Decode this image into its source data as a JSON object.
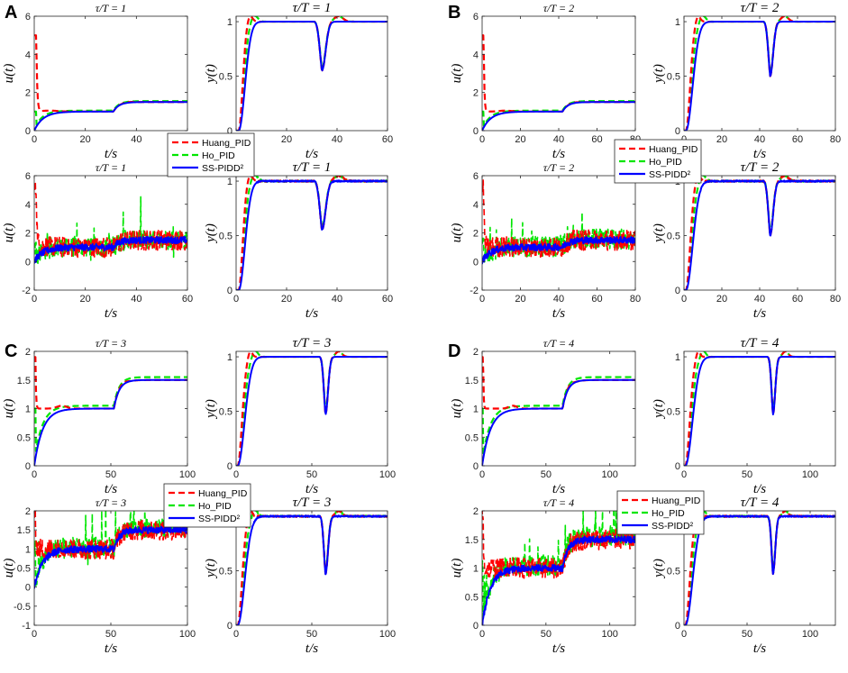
{
  "panels": [
    {
      "letter": "A",
      "legend": [
        "Huang_PID",
        "Ho_PID",
        "SS-PIDD²"
      ],
      "chart_data": [
        {
          "type": "line",
          "title": "τ/T = 1",
          "xlabel": "t/s",
          "ylabel": "u(t)",
          "xlim": [
            0,
            60
          ],
          "ylim": [
            0,
            6
          ],
          "xticks": [
            0,
            20,
            40,
            60
          ],
          "yticks": [
            0,
            2,
            4,
            6
          ],
          "kind": "u",
          "noisy": false,
          "tau": 1,
          "dist": 31,
          "final": 1.5,
          "series": [
            {
              "name": "Huang_PID",
              "values": [
                5.0,
                0.9,
                1.0,
                1.5
              ]
            },
            {
              "name": "Ho_PID",
              "values": [
                1.0,
                0.9,
                1.0,
                1.5
              ]
            },
            {
              "name": "SS-PIDD²",
              "values": [
                0,
                0.9,
                1.0,
                1.5
              ]
            }
          ]
        },
        {
          "type": "line",
          "title": "τ/T = 1",
          "xlabel": "t/s",
          "ylabel": "y(t)",
          "xlim": [
            0,
            60
          ],
          "ylim": [
            0,
            1.05
          ],
          "xticks": [
            0,
            20,
            40,
            60
          ],
          "yticks": [
            0,
            0.5,
            1
          ],
          "kind": "y",
          "noisy": false,
          "tau": 1,
          "dist": 31,
          "series": [
            {
              "name": "Huang_PID",
              "values": [
                0,
                1.1,
                1.0,
                0.6,
                1.0
              ]
            },
            {
              "name": "Ho_PID",
              "values": [
                0,
                1.1,
                1.0,
                0.6,
                1.0
              ]
            },
            {
              "name": "SS-PIDD²",
              "values": [
                0,
                1.0,
                1.0,
                0.55,
                1.0
              ]
            }
          ]
        },
        {
          "type": "line",
          "title": "τ/T = 1",
          "xlabel": "t/s",
          "ylabel": "u(t)",
          "xlim": [
            0,
            60
          ],
          "ylim": [
            -2,
            6
          ],
          "xticks": [
            0,
            20,
            40,
            60
          ],
          "yticks": [
            -2,
            0,
            2,
            4,
            6
          ],
          "kind": "u",
          "noisy": true,
          "tau": 1,
          "dist": 31,
          "final": 1.5,
          "series": [
            {
              "name": "Huang_PID",
              "values": [
                5.0,
                1.0,
                1.5
              ]
            },
            {
              "name": "Ho_PID",
              "values": [
                1.0,
                1.0,
                1.5
              ]
            },
            {
              "name": "SS-PIDD²",
              "values": [
                0,
                1.0,
                1.5
              ]
            }
          ]
        },
        {
          "type": "line",
          "title": "τ/T = 1",
          "xlabel": "t/s",
          "ylabel": "y(t)",
          "xlim": [
            0,
            60
          ],
          "ylim": [
            0,
            1.05
          ],
          "xticks": [
            0,
            20,
            40,
            60
          ],
          "yticks": [
            0,
            0.5,
            1
          ],
          "kind": "y",
          "noisy": true,
          "tau": 1,
          "dist": 31,
          "series": [
            {
              "name": "Huang_PID",
              "values": [
                0,
                1.1,
                1.0,
                0.6,
                1.0
              ]
            },
            {
              "name": "Ho_PID",
              "values": [
                0,
                1.1,
                1.0,
                0.6,
                1.0
              ]
            },
            {
              "name": "SS-PIDD²",
              "values": [
                0,
                1.0,
                1.0,
                0.55,
                1.0
              ]
            }
          ]
        }
      ]
    },
    {
      "letter": "B",
      "legend": [
        "Huang_PID",
        "Ho_PID",
        "SS-PIDD²"
      ],
      "chart_data": [
        {
          "type": "line",
          "title": "τ/T = 2",
          "xlabel": "t/s",
          "ylabel": "u(t)",
          "xlim": [
            0,
            80
          ],
          "ylim": [
            0,
            6
          ],
          "xticks": [
            0,
            20,
            40,
            60,
            80
          ],
          "yticks": [
            0,
            2,
            4,
            6
          ],
          "kind": "u",
          "noisy": false,
          "tau": 2,
          "dist": 42,
          "final": 1.5,
          "series": [
            {
              "name": "Huang_PID",
              "values": [
                5.0,
                1.0,
                1.0,
                1.5
              ]
            },
            {
              "name": "Ho_PID",
              "values": [
                1.0,
                1.0,
                1.0,
                1.5
              ]
            },
            {
              "name": "SS-PIDD²",
              "values": [
                0,
                1.0,
                1.0,
                1.5
              ]
            }
          ]
        },
        {
          "type": "line",
          "title": "τ/T = 2",
          "xlabel": "t/s",
          "ylabel": "y(t)",
          "xlim": [
            0,
            80
          ],
          "ylim": [
            0,
            1.05
          ],
          "xticks": [
            0,
            20,
            40,
            60,
            80
          ],
          "yticks": [
            0,
            0.5,
            1
          ],
          "kind": "y",
          "noisy": false,
          "tau": 2,
          "dist": 42,
          "series": [
            {
              "name": "Huang_PID",
              "values": [
                0,
                1.05,
                1.0,
                0.5,
                1.0
              ]
            },
            {
              "name": "Ho_PID",
              "values": [
                0,
                1.0,
                1.0,
                0.5,
                1.0
              ]
            },
            {
              "name": "SS-PIDD²",
              "values": [
                0,
                1.0,
                1.0,
                0.5,
                1.0
              ]
            }
          ]
        },
        {
          "type": "line",
          "title": "τ/T = 2",
          "xlabel": "t/s",
          "ylabel": "u(t)",
          "xlim": [
            0,
            80
          ],
          "ylim": [
            -2,
            6
          ],
          "xticks": [
            0,
            20,
            40,
            60,
            80
          ],
          "yticks": [
            -2,
            0,
            2,
            4,
            6
          ],
          "kind": "u",
          "noisy": true,
          "tau": 2,
          "dist": 42,
          "final": 1.5,
          "series": [
            {
              "name": "Huang_PID",
              "values": [
                5.0,
                1.0,
                1.5
              ]
            },
            {
              "name": "Ho_PID",
              "values": [
                1.0,
                1.0,
                1.5
              ]
            },
            {
              "name": "SS-PIDD²",
              "values": [
                0,
                1.0,
                1.5
              ]
            }
          ]
        },
        {
          "type": "line",
          "title": "τ/T = 2",
          "xlabel": "t/s",
          "ylabel": "y(t)",
          "xlim": [
            0,
            80
          ],
          "ylim": [
            0,
            1.05
          ],
          "xticks": [
            0,
            20,
            40,
            60,
            80
          ],
          "yticks": [
            0,
            0.5,
            1
          ],
          "kind": "y",
          "noisy": true,
          "tau": 2,
          "dist": 42,
          "series": [
            {
              "name": "Huang_PID",
              "values": [
                0,
                1.05,
                1.0,
                0.5,
                1.0
              ]
            },
            {
              "name": "Ho_PID",
              "values": [
                0,
                1.0,
                1.0,
                0.5,
                1.0
              ]
            },
            {
              "name": "SS-PIDD²",
              "values": [
                0,
                1.0,
                1.0,
                0.5,
                1.0
              ]
            }
          ]
        }
      ]
    },
    {
      "letter": "C",
      "legend": [
        "Huang_PID",
        "Ho_PID",
        "SS-PIDD²"
      ],
      "chart_data": [
        {
          "type": "line",
          "title": "τ/T = 3",
          "xlabel": "t/s",
          "ylabel": "u(t)",
          "xlim": [
            0,
            100
          ],
          "ylim": [
            0,
            2
          ],
          "xticks": [
            0,
            50,
            100
          ],
          "yticks": [
            0,
            0.5,
            1,
            1.5,
            2
          ],
          "kind": "u",
          "noisy": false,
          "tau": 3,
          "dist": 52,
          "final": 1.5,
          "series": [
            {
              "name": "Huang_PID",
              "values": [
                1.9,
                1.0,
                1.0,
                1.5
              ]
            },
            {
              "name": "Ho_PID",
              "values": [
                1.0,
                1.0,
                1.0,
                1.5
              ]
            },
            {
              "name": "SS-PIDD²",
              "values": [
                0,
                1.0,
                1.0,
                1.5
              ]
            }
          ]
        },
        {
          "type": "line",
          "title": "τ/T = 3",
          "xlabel": "t/s",
          "ylabel": "y(t)",
          "xlim": [
            0,
            100
          ],
          "ylim": [
            0,
            1.05
          ],
          "xticks": [
            0,
            50,
            100
          ],
          "yticks": [
            0,
            0.5,
            1
          ],
          "kind": "y",
          "noisy": false,
          "tau": 3,
          "dist": 55,
          "series": [
            {
              "name": "Huang_PID",
              "values": [
                0,
                1.05,
                1.0,
                0.47,
                1.0
              ]
            },
            {
              "name": "Ho_PID",
              "values": [
                0,
                1.0,
                1.0,
                0.47,
                1.0
              ]
            },
            {
              "name": "SS-PIDD²",
              "values": [
                0,
                1.0,
                1.0,
                0.47,
                1.0
              ]
            }
          ]
        },
        {
          "type": "line",
          "title": "τ/T = 3",
          "xlabel": "t/s",
          "ylabel": "u(t)",
          "xlim": [
            0,
            100
          ],
          "ylim": [
            -1,
            2
          ],
          "xticks": [
            0,
            50,
            100
          ],
          "yticks": [
            -1,
            -0.5,
            0,
            0.5,
            1,
            1.5,
            2
          ],
          "kind": "u",
          "noisy": true,
          "tau": 3,
          "dist": 52,
          "final": 1.5,
          "series": [
            {
              "name": "Huang_PID",
              "values": [
                1.9,
                1.0,
                1.5
              ]
            },
            {
              "name": "Ho_PID",
              "values": [
                1.0,
                1.0,
                1.5
              ]
            },
            {
              "name": "SS-PIDD²",
              "values": [
                0,
                1.0,
                1.5
              ]
            }
          ]
        },
        {
          "type": "line",
          "title": "τ/T = 3",
          "xlabel": "t/s",
          "ylabel": "y(t)",
          "xlim": [
            0,
            100
          ],
          "ylim": [
            0,
            1.05
          ],
          "xticks": [
            0,
            50,
            100
          ],
          "yticks": [
            0,
            0.5,
            1
          ],
          "kind": "y",
          "noisy": true,
          "tau": 3,
          "dist": 55,
          "series": [
            {
              "name": "Huang_PID",
              "values": [
                0,
                1.05,
                1.0,
                0.47,
                1.0
              ]
            },
            {
              "name": "Ho_PID",
              "values": [
                0,
                1.0,
                1.0,
                0.47,
                1.0
              ]
            },
            {
              "name": "SS-PIDD²",
              "values": [
                0,
                1.0,
                1.0,
                0.47,
                1.0
              ]
            }
          ]
        }
      ]
    },
    {
      "letter": "D",
      "legend": [
        "Huang_PID",
        "Ho_PID",
        "SS-PIDD²"
      ],
      "chart_data": [
        {
          "type": "line",
          "title": "τ/T = 4",
          "xlabel": "t/s",
          "ylabel": "u(t)",
          "xlim": [
            0,
            120
          ],
          "ylim": [
            0,
            2
          ],
          "xticks": [
            0,
            50,
            100
          ],
          "yticks": [
            0,
            0.5,
            1,
            1.5,
            2
          ],
          "kind": "u",
          "noisy": false,
          "tau": 4,
          "dist": 63,
          "final": 1.5,
          "series": [
            {
              "name": "Huang_PID",
              "values": [
                1.9,
                1.0,
                1.0,
                1.5
              ]
            },
            {
              "name": "Ho_PID",
              "values": [
                1.0,
                1.0,
                1.0,
                1.5
              ]
            },
            {
              "name": "SS-PIDD²",
              "values": [
                0,
                1.0,
                1.0,
                1.5
              ]
            }
          ]
        },
        {
          "type": "line",
          "title": "τ/T = 4",
          "xlabel": "t/s",
          "ylabel": "y(t)",
          "xlim": [
            0,
            120
          ],
          "ylim": [
            0,
            1.05
          ],
          "xticks": [
            0,
            50,
            100
          ],
          "yticks": [
            0,
            0.5,
            1
          ],
          "kind": "y",
          "noisy": false,
          "tau": 4,
          "dist": 66,
          "series": [
            {
              "name": "Huang_PID",
              "values": [
                0,
                1.05,
                1.0,
                0.47,
                1.0
              ]
            },
            {
              "name": "Ho_PID",
              "values": [
                0,
                1.0,
                1.0,
                0.47,
                1.0
              ]
            },
            {
              "name": "SS-PIDD²",
              "values": [
                0,
                1.0,
                1.0,
                0.47,
                1.0
              ]
            }
          ]
        },
        {
          "type": "line",
          "title": "τ/T = 4",
          "xlabel": "t/s",
          "ylabel": "u(t)",
          "xlim": [
            0,
            120
          ],
          "ylim": [
            0,
            2
          ],
          "xticks": [
            0,
            50,
            100
          ],
          "yticks": [
            0,
            0.5,
            1,
            1.5,
            2
          ],
          "kind": "u",
          "noisy": true,
          "tau": 4,
          "dist": 63,
          "final": 1.5,
          "series": [
            {
              "name": "Huang_PID",
              "values": [
                1.9,
                1.0,
                1.5
              ]
            },
            {
              "name": "Ho_PID",
              "values": [
                1.0,
                1.0,
                1.5
              ]
            },
            {
              "name": "SS-PIDD²",
              "values": [
                0,
                1.0,
                1.5
              ]
            }
          ]
        },
        {
          "type": "line",
          "title": "τ/T = 4",
          "xlabel": "t/s",
          "ylabel": "y(t)",
          "xlim": [
            0,
            120
          ],
          "ylim": [
            0,
            1.05
          ],
          "xticks": [
            0,
            50,
            100
          ],
          "yticks": [
            0,
            0.5,
            1
          ],
          "kind": "y",
          "noisy": true,
          "tau": 4,
          "dist": 66,
          "series": [
            {
              "name": "Huang_PID",
              "values": [
                0,
                1.05,
                1.0,
                0.47,
                1.0
              ]
            },
            {
              "name": "Ho_PID",
              "values": [
                0,
                1.0,
                1.0,
                0.47,
                1.0
              ]
            },
            {
              "name": "SS-PIDD²",
              "values": [
                0,
                1.0,
                1.0,
                0.47,
                1.0
              ]
            }
          ]
        }
      ]
    }
  ],
  "colors": {
    "huang": "#ff0000",
    "ho": "#00e600",
    "ss": "#0000ff",
    "axis": "#262626"
  }
}
